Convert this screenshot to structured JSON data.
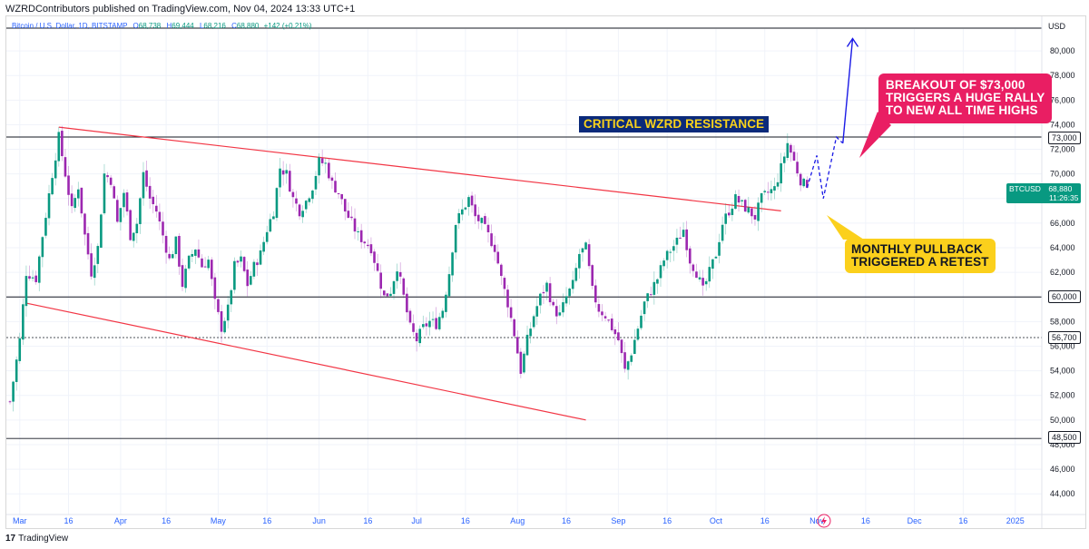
{
  "header": {
    "publish_text": "WZRDContributors published on TradingView.com, Nov 04, 2024 13:33 UTC+1"
  },
  "legend": {
    "symbol": "Bitcoin / U.S. Dollar, 1D, BITSTAMP",
    "open_label": "O",
    "open": "68,738",
    "high_label": "H",
    "high": "69,444",
    "low_label": "L",
    "low": "68,216",
    "close_label": "C",
    "close": "68,880",
    "change": "+142 (+0.21%)"
  },
  "footer": {
    "brand": "TradingView",
    "brand_mark": "17"
  },
  "colors": {
    "up": "#089981",
    "down": "#9c27b0",
    "channel": "#f23645",
    "level": "#131722",
    "projection": "#1a1ae6"
  },
  "annotations": {
    "critical": "CRITICAL WZRD RESISTANCE",
    "breakout": [
      "BREAKOUT OF $73,000",
      "TRIGGERS A HUGE RALLY",
      "TO NEW ALL TIME HIGHS"
    ],
    "pullback": [
      "MONTHLY PULLBACK",
      "TRIGGERED A RETEST"
    ]
  },
  "price_tags": {
    "p73000": "73,000",
    "p60000": "60,000",
    "p56700": "56,700",
    "p48500": "48,500",
    "btc_symbol": "BTCUSD",
    "btc_price": "68,880",
    "btc_countdown": "11:26:35"
  },
  "chart_data": {
    "type": "candlestick",
    "title": "Bitcoin / U.S. Dollar, 1D, BITSTAMP",
    "currency": "USD",
    "ylim": [
      42500,
      83500
    ],
    "xlim": [
      0,
      272
    ],
    "y_ticks": [
      "44,000",
      "46,000",
      "48,000",
      "50,000",
      "52,000",
      "54,000",
      "56,000",
      "58,000",
      "60,000",
      "62,000",
      "64,000",
      "66,000",
      "68,000",
      "70,000",
      "72,000",
      "74,000",
      "76,000",
      "78,000",
      "80,000"
    ],
    "x_ticks": [
      {
        "label": "Mar",
        "day": 3
      },
      {
        "label": "16",
        "day": 18
      },
      {
        "label": "Apr",
        "day": 34
      },
      {
        "label": "16",
        "day": 48
      },
      {
        "label": "May",
        "day": 64
      },
      {
        "label": "16",
        "day": 79
      },
      {
        "label": "Jun",
        "day": 95
      },
      {
        "label": "16",
        "day": 110
      },
      {
        "label": "Jul",
        "day": 125
      },
      {
        "label": "16",
        "day": 140
      },
      {
        "label": "Aug",
        "day": 156
      },
      {
        "label": "16",
        "day": 171
      },
      {
        "label": "Sep",
        "day": 187
      },
      {
        "label": "16",
        "day": 202
      },
      {
        "label": "Oct",
        "day": 217
      },
      {
        "label": "16",
        "day": 232
      },
      {
        "label": "Nov",
        "day": 248
      },
      {
        "label": "16",
        "day": 263
      },
      {
        "label": "Dec",
        "day": 278
      },
      {
        "label": "16",
        "day": 293
      },
      {
        "label": "2025",
        "day": 309
      }
    ],
    "close_path": [
      [
        0,
        51500
      ],
      [
        3,
        56500
      ],
      [
        5,
        62000
      ],
      [
        8,
        61500
      ],
      [
        10,
        65000
      ],
      [
        13,
        70000
      ],
      [
        15,
        73000
      ],
      [
        17,
        70000
      ],
      [
        19,
        67000
      ],
      [
        21,
        69000
      ],
      [
        23,
        65000
      ],
      [
        25,
        62000
      ],
      [
        27,
        64000
      ],
      [
        29,
        70000
      ],
      [
        31,
        69500
      ],
      [
        33,
        66000
      ],
      [
        35,
        68500
      ],
      [
        37,
        65000
      ],
      [
        39,
        66000
      ],
      [
        41,
        70000
      ],
      [
        43,
        68000
      ],
      [
        45,
        67000
      ],
      [
        47,
        65000
      ],
      [
        49,
        63000
      ],
      [
        51,
        64500
      ],
      [
        53,
        61000
      ],
      [
        55,
        63000
      ],
      [
        57,
        64000
      ],
      [
        59,
        62500
      ],
      [
        61,
        63000
      ],
      [
        63,
        59500
      ],
      [
        65,
        57500
      ],
      [
        67,
        59000
      ],
      [
        69,
        62500
      ],
      [
        71,
        63000
      ],
      [
        73,
        61000
      ],
      [
        75,
        62500
      ],
      [
        77,
        63500
      ],
      [
        79,
        65500
      ],
      [
        81,
        67000
      ],
      [
        83,
        70500
      ],
      [
        85,
        70000
      ],
      [
        87,
        68000
      ],
      [
        89,
        67000
      ],
      [
        91,
        67800
      ],
      [
        93,
        69000
      ],
      [
        95,
        71000
      ],
      [
        97,
        70800
      ],
      [
        99,
        69200
      ],
      [
        101,
        68500
      ],
      [
        103,
        67000
      ],
      [
        105,
        66000
      ],
      [
        107,
        65000
      ],
      [
        109,
        64500
      ],
      [
        111,
        64000
      ],
      [
        113,
        62000
      ],
      [
        115,
        60000
      ],
      [
        117,
        60500
      ],
      [
        119,
        62500
      ],
      [
        121,
        60000
      ],
      [
        123,
        57500
      ],
      [
        125,
        56500
      ],
      [
        127,
        57500
      ],
      [
        129,
        58000
      ],
      [
        131,
        57800
      ],
      [
        133,
        59000
      ],
      [
        135,
        62000
      ],
      [
        137,
        66000
      ],
      [
        139,
        67000
      ],
      [
        141,
        68000
      ],
      [
        143,
        66500
      ],
      [
        145,
        66000
      ],
      [
        147,
        65000
      ],
      [
        149,
        64000
      ],
      [
        151,
        61500
      ],
      [
        153,
        59500
      ],
      [
        155,
        57000
      ],
      [
        157,
        54000
      ],
      [
        159,
        56500
      ],
      [
        161,
        58500
      ],
      [
        163,
        60000
      ],
      [
        165,
        61000
      ],
      [
        167,
        59000
      ],
      [
        169,
        58500
      ],
      [
        171,
        60000
      ],
      [
        173,
        61000
      ],
      [
        175,
        63500
      ],
      [
        177,
        64000
      ],
      [
        179,
        60500
      ],
      [
        181,
        59000
      ],
      [
        183,
        58500
      ],
      [
        185,
        57500
      ],
      [
        187,
        56500
      ],
      [
        189,
        54000
      ],
      [
        191,
        55500
      ],
      [
        193,
        57500
      ],
      [
        195,
        59500
      ],
      [
        197,
        60500
      ],
      [
        199,
        61500
      ],
      [
        201,
        63000
      ],
      [
        203,
        63800
      ],
      [
        205,
        64500
      ],
      [
        207,
        65500
      ],
      [
        209,
        63000
      ],
      [
        211,
        62000
      ],
      [
        213,
        60500
      ],
      [
        215,
        62000
      ],
      [
        217,
        63500
      ],
      [
        219,
        66000
      ],
      [
        221,
        67000
      ],
      [
        223,
        68000
      ],
      [
        225,
        67500
      ],
      [
        227,
        67000
      ],
      [
        229,
        66500
      ],
      [
        231,
        68000
      ],
      [
        233,
        68500
      ],
      [
        235,
        68800
      ],
      [
        237,
        70500
      ],
      [
        239,
        72500
      ],
      [
        241,
        71000
      ],
      [
        243,
        69500
      ],
      [
        245,
        68880
      ]
    ],
    "projection": {
      "name": "projected path",
      "points": [
        [
          245,
          68880
        ],
        [
          248,
          71500
        ],
        [
          250,
          68000
        ],
        [
          252,
          70500
        ],
        [
          254,
          73000
        ],
        [
          256,
          72500
        ]
      ],
      "arrow": [
        [
          256,
          72500
        ],
        [
          259,
          81000
        ]
      ]
    },
    "channel": {
      "upper": [
        [
          15,
          73800
        ],
        [
          237,
          67000
        ]
      ],
      "lower": [
        [
          5,
          59500
        ],
        [
          177,
          50000
        ]
      ]
    },
    "levels": [
      73000,
      60000,
      56700,
      48500
    ],
    "last_price": 68880
  }
}
